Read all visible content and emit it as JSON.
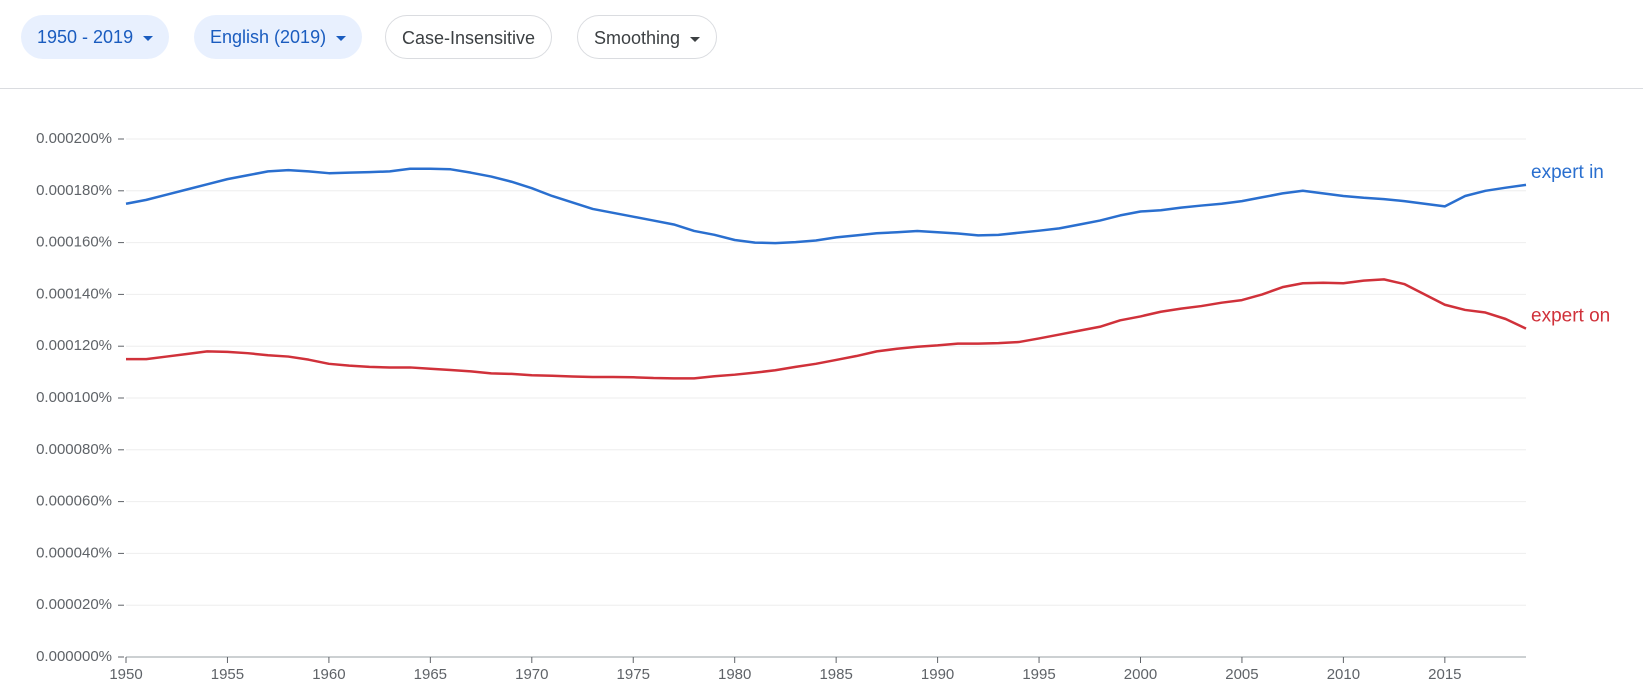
{
  "toolbar": {
    "year_range": "1950 - 2019",
    "corpus": "English (2019)",
    "case": "Case-Insensitive",
    "smoothing": "Smoothing"
  },
  "chart_data": {
    "type": "line",
    "x": [
      1950,
      1951,
      1952,
      1953,
      1954,
      1955,
      1956,
      1957,
      1958,
      1959,
      1960,
      1961,
      1962,
      1963,
      1964,
      1965,
      1966,
      1967,
      1968,
      1969,
      1970,
      1971,
      1972,
      1973,
      1974,
      1975,
      1976,
      1977,
      1978,
      1979,
      1980,
      1981,
      1982,
      1983,
      1984,
      1985,
      1986,
      1987,
      1988,
      1989,
      1990,
      1991,
      1992,
      1993,
      1994,
      1995,
      1996,
      1997,
      1998,
      1999,
      2000,
      2001,
      2002,
      2003,
      2004,
      2005,
      2006,
      2007,
      2008,
      2009,
      2010,
      2011,
      2012,
      2013,
      2014,
      2015,
      2016,
      2017,
      2018,
      2019
    ],
    "series": [
      {
        "name": "expert in",
        "color": "#2a6fcf",
        "values": [
          0.000175,
          0.0001765,
          0.0001785,
          0.0001805,
          0.0001825,
          0.0001845,
          0.000186,
          0.0001875,
          0.000188,
          0.0001875,
          0.0001868,
          0.000187,
          0.0001872,
          0.0001875,
          0.0001885,
          0.0001885,
          0.0001883,
          0.000187,
          0.0001855,
          0.0001835,
          0.000181,
          0.000178,
          0.0001755,
          0.000173,
          0.0001715,
          0.00017,
          0.0001685,
          0.000167,
          0.0001645,
          0.000163,
          0.000161,
          0.00016,
          0.0001598,
          0.0001602,
          0.0001608,
          0.000162,
          0.0001628,
          0.0001636,
          0.000164,
          0.0001645,
          0.000164,
          0.0001635,
          0.0001628,
          0.000163,
          0.0001638,
          0.0001646,
          0.0001655,
          0.000167,
          0.0001685,
          0.0001705,
          0.000172,
          0.0001725,
          0.0001735,
          0.0001743,
          0.000175,
          0.000176,
          0.0001775,
          0.000179,
          0.00018,
          0.000179,
          0.000178,
          0.0001773,
          0.0001768,
          0.000176,
          0.000175,
          0.000174,
          0.000178,
          0.00018,
          0.0001812,
          0.0001823
        ]
      },
      {
        "name": "expert on",
        "color": "#d0313a",
        "values": [
          0.000115,
          0.000115,
          0.000116,
          0.000117,
          0.000118,
          0.0001178,
          0.0001173,
          0.0001165,
          0.000116,
          0.0001148,
          0.0001132,
          0.0001125,
          0.000112,
          0.0001118,
          0.0001118,
          0.0001113,
          0.0001108,
          0.0001103,
          0.0001095,
          0.0001093,
          0.0001088,
          0.0001086,
          0.0001083,
          0.0001081,
          0.0001081,
          0.000108,
          0.0001077,
          0.0001076,
          0.0001076,
          0.0001084,
          0.000109,
          0.0001098,
          0.0001107,
          0.000112,
          0.0001132,
          0.0001147,
          0.0001162,
          0.000118,
          0.000119,
          0.0001198,
          0.0001203,
          0.000121,
          0.000121,
          0.0001212,
          0.0001216,
          0.000123,
          0.0001245,
          0.000126,
          0.0001275,
          0.00013,
          0.0001315,
          0.0001333,
          0.0001345,
          0.0001355,
          0.0001368,
          0.0001378,
          0.00014,
          0.0001428,
          0.0001443,
          0.0001445,
          0.0001443,
          0.0001453,
          0.0001458,
          0.000144,
          0.00014,
          0.000136,
          0.000134,
          0.000133,
          0.0001305,
          0.0001268
        ]
      }
    ],
    "xlim": [
      1950,
      2019
    ],
    "xticks": [
      1950,
      1955,
      1960,
      1965,
      1970,
      1975,
      1980,
      1985,
      1990,
      1995,
      2000,
      2005,
      2010,
      2015
    ],
    "ylim": [
      0,
      0.0002
    ],
    "yticks": [
      {
        "value": 0,
        "label": "0.000000%"
      },
      {
        "value": 2e-05,
        "label": "0.000020%"
      },
      {
        "value": 4e-05,
        "label": "0.000040%"
      },
      {
        "value": 6e-05,
        "label": "0.000060%"
      },
      {
        "value": 8e-05,
        "label": "0.000080%"
      },
      {
        "value": 0.0001,
        "label": "0.000100%"
      },
      {
        "value": 0.00012,
        "label": "0.000120%"
      },
      {
        "value": 0.00014,
        "label": "0.000140%"
      },
      {
        "value": 0.00016,
        "label": "0.000160%"
      },
      {
        "value": 0.00018,
        "label": "0.000180%"
      },
      {
        "value": 0.0002,
        "label": "0.000200%"
      }
    ],
    "grid": true
  }
}
